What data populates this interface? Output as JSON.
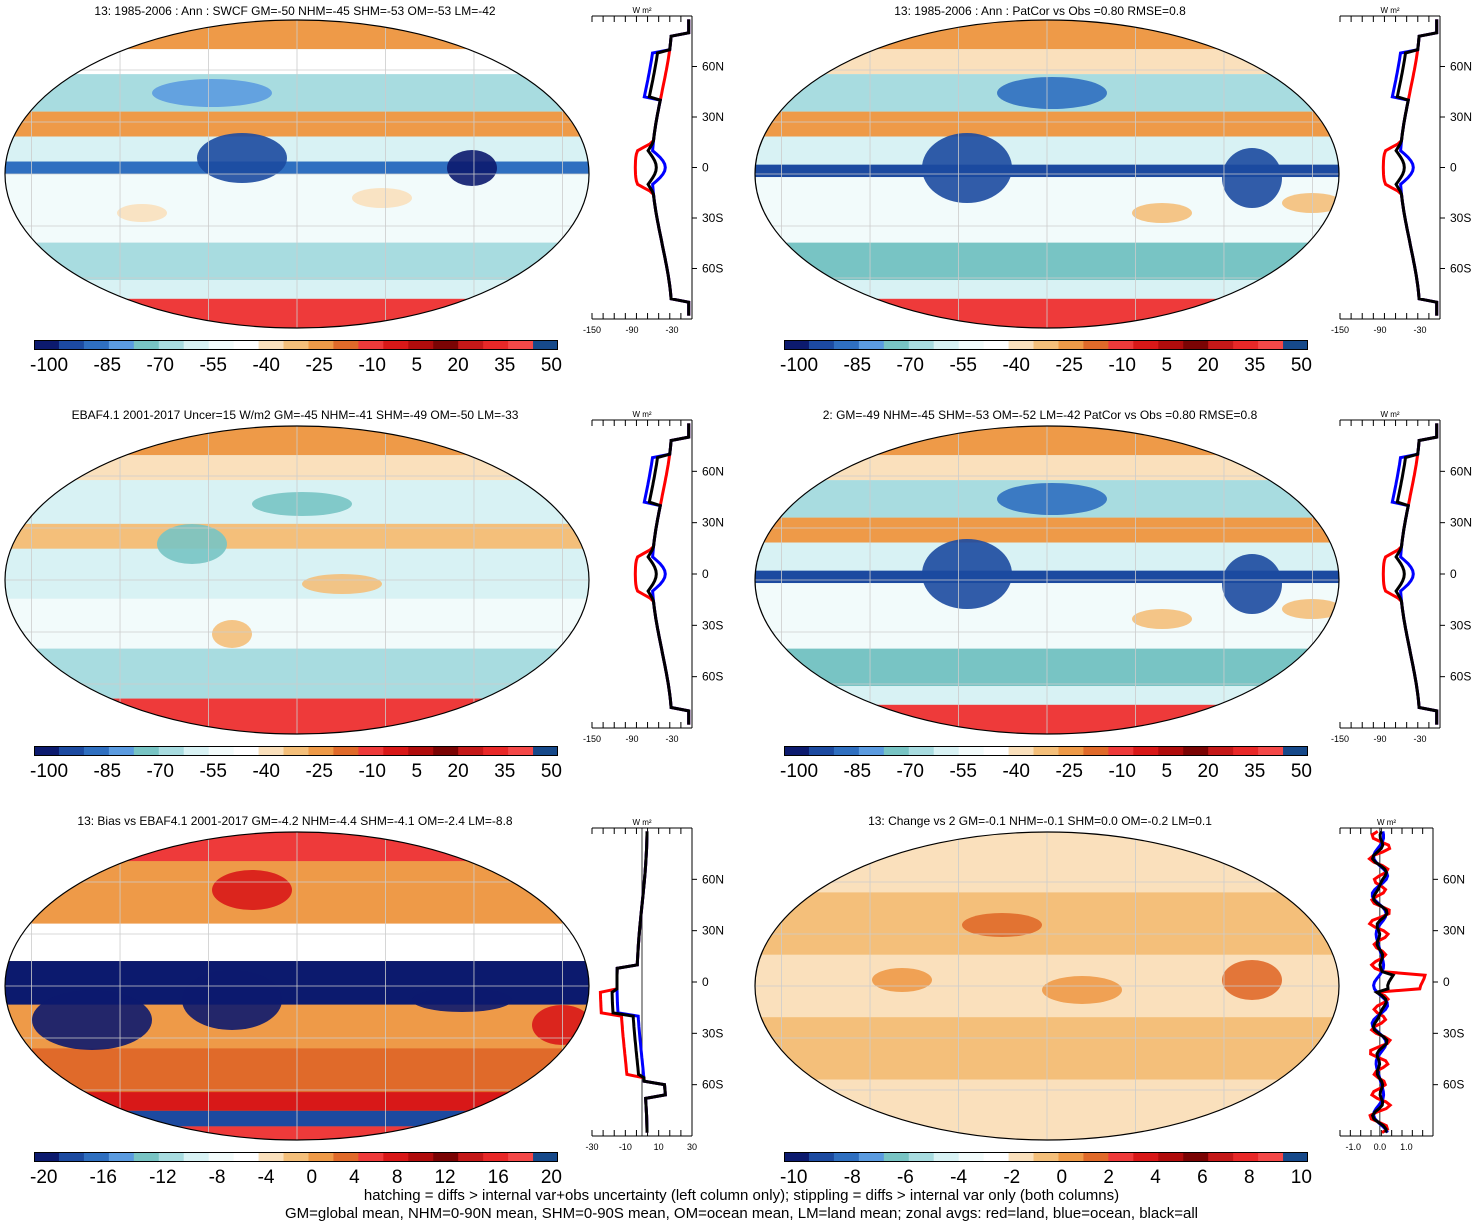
{
  "panels": [
    {
      "title": "13: 1985-2006 : Ann : SWCF GM=-50 NHM=-45 SHM=-53 OM=-53 LM=-42"
    },
    {
      "title": "13: 1985-2006 : Ann : PatCor vs Obs =0.80 RMSE=0.8"
    },
    {
      "title": "EBAF4.1 2001-2017 Uncer=15 W/m2 GM=-45 NHM=-41 SHM=-49 OM=-50 LM=-33"
    },
    {
      "title": "2: GM=-49 NHM=-45 SHM=-53 OM=-52 LM=-42 PatCor vs Obs =0.80 RMSE=0.8"
    },
    {
      "title": "13: Bias vs EBAF4.1 2001-2017 GM=-4.2 NHM=-4.4 SHM=-4.1 OM=-2.4 LM=-8.8"
    },
    {
      "title": "13: Change vs 2 GM=-0.1 NHM=-0.1 SHM=0.0 OM=-0.2 LM=0.1"
    }
  ],
  "colorbars": {
    "abs": {
      "labels": [
        "-100",
        "-85",
        "-70",
        "-55",
        "-40",
        "-25",
        "-10",
        "5",
        "20",
        "35",
        "50"
      ]
    },
    "bias": {
      "labels": [
        "-20",
        "-16",
        "-12",
        "-8",
        "-4",
        "0",
        "4",
        "8",
        "12",
        "16",
        "20"
      ]
    },
    "change": {
      "labels": [
        "-10",
        "-8",
        "-6",
        "-4",
        "-2",
        "0",
        "2",
        "4",
        "6",
        "8",
        "10"
      ]
    }
  },
  "palette": [
    "#0c1a6e",
    "#1c4aa0",
    "#2f6fc0",
    "#5b9be0",
    "#78c4c4",
    "#a8dce0",
    "#d8f2f4",
    "#f2fbfb",
    "#ffffff",
    "#fae0bc",
    "#f4bf7a",
    "#ee9a48",
    "#e06a2a",
    "#ee3a3a",
    "#d81818",
    "#b00c0c",
    "#7a0404",
    "#c41818",
    "#e82828",
    "#f44848",
    "#16498a"
  ],
  "profile_axis": {
    "unit": "W m²",
    "lat_labels": [
      "60N",
      "30N",
      "0",
      "30S",
      "60S"
    ],
    "abs_ticks": [
      "-150",
      "-90",
      "-30"
    ],
    "bias_ticks": [
      "-30",
      "-10",
      "10",
      "30"
    ],
    "change_ticks": [
      "-1.0",
      "0.0",
      "1.0"
    ]
  },
  "footer": {
    "line1": "hatching = diffs > internal var+obs uncertainty (left column only); stippling = diffs > internal var only (both columns)",
    "line2": "GM=global mean, NHM=0-90N mean, SHM=0-90S mean, OM=ocean mean, LM=land mean; zonal avgs: red=land, blue=ocean, black=all"
  },
  "series_colors": {
    "land": "#ff0000",
    "ocean": "#0000ff",
    "all": "#000000"
  }
}
